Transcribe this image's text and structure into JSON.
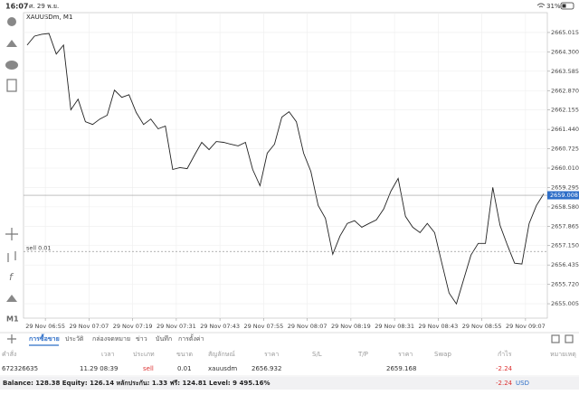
{
  "status_bar": {
    "time": "16:07",
    "date": "ศ. 29 พ.ย.",
    "battery": "31%"
  },
  "chart_data": {
    "type": "line",
    "title": "XAUUSDm, M1",
    "timeframe": "M1",
    "color": "#222222",
    "x": [
      "29 Nov 06:50",
      "29 Nov 06:52",
      "29 Nov 06:54",
      "29 Nov 06:56",
      "29 Nov 06:58",
      "29 Nov 07:00",
      "29 Nov 07:02",
      "29 Nov 07:04",
      "29 Nov 07:06",
      "29 Nov 07:08",
      "29 Nov 07:10",
      "29 Nov 07:12",
      "29 Nov 07:14",
      "29 Nov 07:16",
      "29 Nov 07:18",
      "29 Nov 07:20",
      "29 Nov 07:22",
      "29 Nov 07:24",
      "29 Nov 07:26",
      "29 Nov 07:28",
      "29 Nov 07:30",
      "29 Nov 07:32",
      "29 Nov 07:34",
      "29 Nov 07:36",
      "29 Nov 07:38",
      "29 Nov 07:40",
      "29 Nov 07:42",
      "29 Nov 07:44",
      "29 Nov 07:46",
      "29 Nov 07:48",
      "29 Nov 07:50",
      "29 Nov 07:52",
      "29 Nov 07:54",
      "29 Nov 07:56",
      "29 Nov 07:58",
      "29 Nov 08:00",
      "29 Nov 08:02",
      "29 Nov 08:04",
      "29 Nov 08:06",
      "29 Nov 08:08",
      "29 Nov 08:10",
      "29 Nov 08:12",
      "29 Nov 08:14",
      "29 Nov 08:16",
      "29 Nov 08:18",
      "29 Nov 08:20",
      "29 Nov 08:22",
      "29 Nov 08:24",
      "29 Nov 08:26",
      "29 Nov 08:28",
      "29 Nov 08:30",
      "29 Nov 08:32",
      "29 Nov 08:34",
      "29 Nov 08:36",
      "29 Nov 08:38",
      "29 Nov 08:40",
      "29 Nov 08:42",
      "29 Nov 08:44",
      "29 Nov 08:46",
      "29 Nov 08:48",
      "29 Nov 08:50",
      "29 Nov 08:52",
      "29 Nov 08:54",
      "29 Nov 08:56",
      "29 Nov 08:58",
      "29 Nov 09:00",
      "29 Nov 09:02",
      "29 Nov 09:04",
      "29 Nov 09:06",
      "29 Nov 09:08",
      "29 Nov 09:10",
      "29 Nov 09:12"
    ],
    "values": [
      2664.55,
      2664.88,
      2664.95,
      2664.98,
      2664.22,
      2664.55,
      2662.16,
      2662.55,
      2661.72,
      2661.62,
      2661.82,
      2661.96,
      2662.89,
      2662.62,
      2662.72,
      2662.06,
      2661.62,
      2661.82,
      2661.46,
      2661.56,
      2659.96,
      2660.03,
      2659.99,
      2660.49,
      2660.96,
      2660.69,
      2660.99,
      2660.96,
      2660.89,
      2660.83,
      2660.96,
      2659.96,
      2659.36,
      2660.56,
      2660.89,
      2661.89,
      2662.09,
      2661.72,
      2660.56,
      2659.89,
      2658.63,
      2658.16,
      2656.83,
      2657.5,
      2657.97,
      2658.07,
      2657.83,
      2657.97,
      2658.1,
      2658.5,
      2659.16,
      2659.63,
      2658.23,
      2657.83,
      2657.63,
      2657.97,
      2657.63,
      2656.5,
      2655.4,
      2655.0,
      2655.9,
      2656.8,
      2657.23,
      2657.23,
      2659.3,
      2657.9,
      2657.17,
      2656.5,
      2656.47,
      2657.97,
      2658.63,
      2659.06
    ],
    "xlim": [
      "29 Nov 06:49",
      "29 Nov 09:13"
    ],
    "xticks": [
      "29 Nov 06:55",
      "29 Nov 07:07",
      "29 Nov 07:19",
      "29 Nov 07:31",
      "29 Nov 07:43",
      "29 Nov 07:55",
      "29 Nov 08:07",
      "29 Nov 08:19",
      "29 Nov 08:31",
      "29 Nov 08:43",
      "29 Nov 08:55",
      "29 Nov 09:07"
    ],
    "ylim": [
      2654.473,
      2665.747
    ],
    "yticks": [
      2665.015,
      {
        "value": 2664.3,
        "label": "2664.300"
      },
      2663.585,
      {
        "value": 2662.87,
        "label": "2662.870"
      },
      2662.155,
      {
        "value": 2661.44,
        "label": "2661.440"
      },
      2660.725,
      {
        "value": 2660.01,
        "label": "2660.010"
      },
      2659.295,
      {
        "value": 2658.58,
        "label": "2658.580"
      },
      2657.865,
      {
        "value": 2657.15,
        "label": "2657.150"
      },
      2656.435,
      {
        "value": 2655.72,
        "label": "2655.720"
      },
      2655.005
    ],
    "grid": true,
    "current_price": 2659.008,
    "order_line_label": "sell 0.01"
  },
  "tabs": [
    "การซื้อขาย",
    "ประวัติ",
    "กล่องจดหมาย",
    "ข่าว",
    "บันทึก",
    "การตั้งค่า"
  ],
  "table": {
    "headers": [
      "คำสั่ง",
      "เวลา",
      "ประเภท",
      "ขนาด",
      "สัญลักษณ์",
      "ราคา",
      "S/L",
      "T/P",
      "ราคา",
      "Swap",
      "กำไร",
      "หมายเหตุ"
    ],
    "rows": [
      {
        "order": "672326635",
        "time": "11.29 08:39",
        "type": "sell",
        "volume": "0.01",
        "symbol": "xauusdm",
        "price": 2656.932,
        "current_price": 2659.168,
        "profit": -2.24
      }
    ]
  },
  "balance": {
    "text": "Balance: 128.38 Equity: 126.14 หลักประกัน: 1.33 ฟรี: 124.81 Level: 9 495.16%",
    "profit": -2.24,
    "currency": "USD"
  }
}
